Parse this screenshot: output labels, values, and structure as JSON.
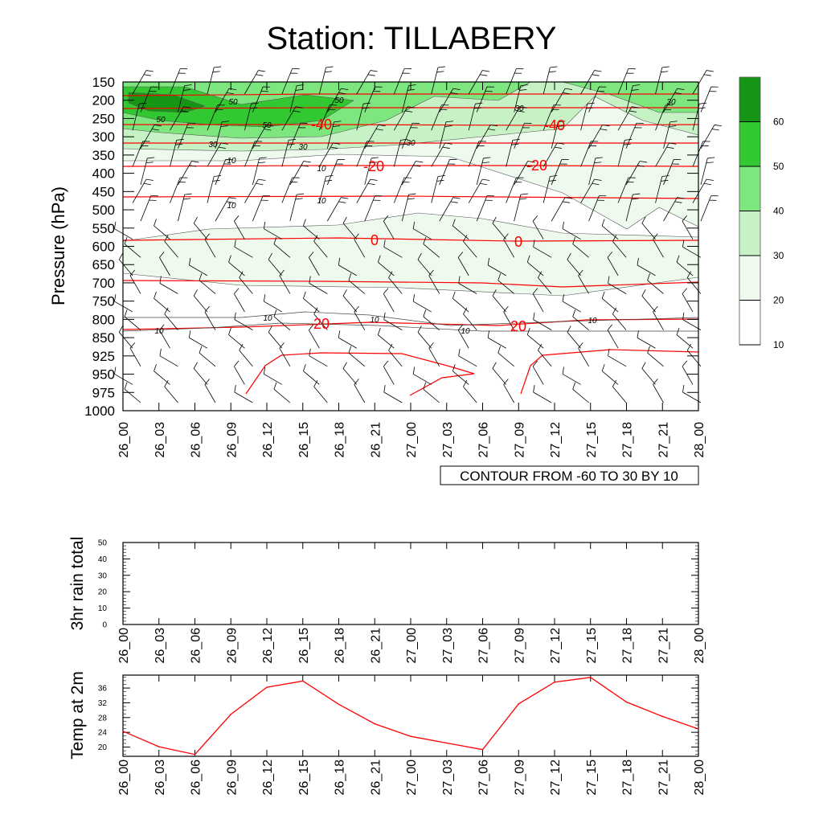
{
  "title": "Station: TILLABERY",
  "contour_note": "CONTOUR FROM -60 TO 30 BY 10",
  "colors": {
    "fill_levels": [
      "#ffffff",
      "#eefaee",
      "#c6f2c6",
      "#7ee67e",
      "#32c832",
      "#149614"
    ],
    "contour_line": "#ff0000",
    "wind_barb": "#000000",
    "temp_line": "#ff0000"
  },
  "chart_data": [
    {
      "type": "heatmap",
      "title": "Station: TILLABERY",
      "ylabel": "Pressure (hPa)",
      "xlabel": "",
      "y_ticks": [
        "150",
        "200",
        "250",
        "300",
        "350",
        "400",
        "450",
        "500",
        "550",
        "600",
        "650",
        "700",
        "750",
        "800",
        "850",
        "925",
        "950",
        "975",
        "1000"
      ],
      "x_ticks": [
        "26_00",
        "26_03",
        "26_06",
        "26_09",
        "26_12",
        "26_15",
        "26_18",
        "26_21",
        "27_00",
        "27_03",
        "27_06",
        "27_09",
        "27_12",
        "27_15",
        "27_18",
        "27_21",
        "28_00"
      ],
      "colorbar": {
        "levels": [
          10,
          20,
          30,
          40,
          50,
          60
        ]
      },
      "contour_labels_red": [
        "-40",
        "-40",
        "-20",
        "-20",
        "0",
        "0",
        "20",
        "20"
      ],
      "contour_labels_black": [
        "50",
        "50",
        "50",
        "50",
        "30",
        "30",
        "30",
        "30",
        "30",
        "10",
        "10",
        "10",
        "10",
        "10",
        "10",
        "10",
        "10",
        "10"
      ],
      "grid": false,
      "legend": "right"
    },
    {
      "type": "line",
      "ylabel": "3hr rain total",
      "ylim": [
        0,
        50
      ],
      "y_ticks": [
        "0",
        "10",
        "20",
        "30",
        "40",
        "50"
      ],
      "x_ticks": [
        "26_00",
        "26_03",
        "26_06",
        "26_09",
        "26_12",
        "26_15",
        "26_18",
        "26_21",
        "27_00",
        "27_03",
        "27_06",
        "27_09",
        "27_12",
        "27_15",
        "27_18",
        "27_21",
        "28_00"
      ],
      "values": []
    },
    {
      "type": "line",
      "ylabel": "Temp at 2m",
      "ylim": [
        17.5,
        39.5
      ],
      "y_ticks": [
        "20",
        "24",
        "28",
        "32",
        "36"
      ],
      "x_ticks": [
        "26_00",
        "26_03",
        "26_06",
        "26_09",
        "26_12",
        "26_15",
        "26_18",
        "26_21",
        "27_00",
        "27_03",
        "27_06",
        "27_09",
        "27_12",
        "27_15",
        "27_18",
        "27_21",
        "28_00"
      ],
      "x": [
        "26_00",
        "26_03",
        "26_06",
        "26_09",
        "26_12",
        "26_15",
        "26_18",
        "26_21",
        "27_00",
        "27_03",
        "27_06",
        "27_09",
        "27_12",
        "27_15",
        "27_18",
        "27_21",
        "28_00"
      ],
      "values": [
        24.3,
        20.1,
        18.0,
        28.9,
        36.2,
        37.9,
        31.6,
        26.3,
        22.9,
        21.1,
        19.3,
        31.7,
        37.6,
        38.9,
        32.2,
        28.3,
        24.9
      ]
    }
  ]
}
